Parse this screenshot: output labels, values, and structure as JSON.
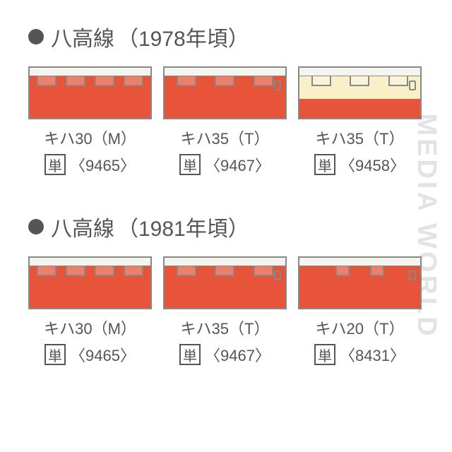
{
  "watermark": "MEDIA WORLD",
  "colors": {
    "vermilion": "#e8543a",
    "cream": "#f9f0c8",
    "roof": "#f5f5f0",
    "outline": "#888888",
    "text": "#555555"
  },
  "sections": [
    {
      "title_line": "八高線",
      "title_period": "（1978年頃）",
      "units": [
        {
          "model": "キハ30（M）",
          "box_char": "単",
          "code": "〈9465〉",
          "body_style": "solid",
          "body_color": "#e8543a",
          "door_count": 4,
          "has_detail_box": false
        },
        {
          "model": "キハ35（T）",
          "box_char": "単",
          "code": "〈9467〉",
          "body_style": "solid",
          "body_color": "#e8543a",
          "door_count": 3,
          "has_detail_box": true
        },
        {
          "model": "キハ35（T）",
          "box_char": "単",
          "code": "〈9458〉",
          "body_style": "two-tone",
          "upper_color": "#f9f0c8",
          "lower_color": "#e8543a",
          "door_count": 3,
          "has_detail_box": true
        }
      ]
    },
    {
      "title_line": "八高線",
      "title_period": "（1981年頃）",
      "units": [
        {
          "model": "キハ30（M）",
          "box_char": "単",
          "code": "〈9465〉",
          "body_style": "solid",
          "body_color": "#e8543a",
          "door_count": 4,
          "has_detail_box": false
        },
        {
          "model": "キハ35（T）",
          "box_char": "単",
          "code": "〈9467〉",
          "body_style": "solid",
          "body_color": "#e8543a",
          "door_count": 3,
          "has_detail_box": true
        },
        {
          "model": "キハ20（T）",
          "box_char": "単",
          "code": "〈8431〉",
          "body_style": "solid",
          "body_color": "#e8543a",
          "door_count": 2,
          "door_small": true,
          "has_detail_box": true
        }
      ]
    }
  ]
}
